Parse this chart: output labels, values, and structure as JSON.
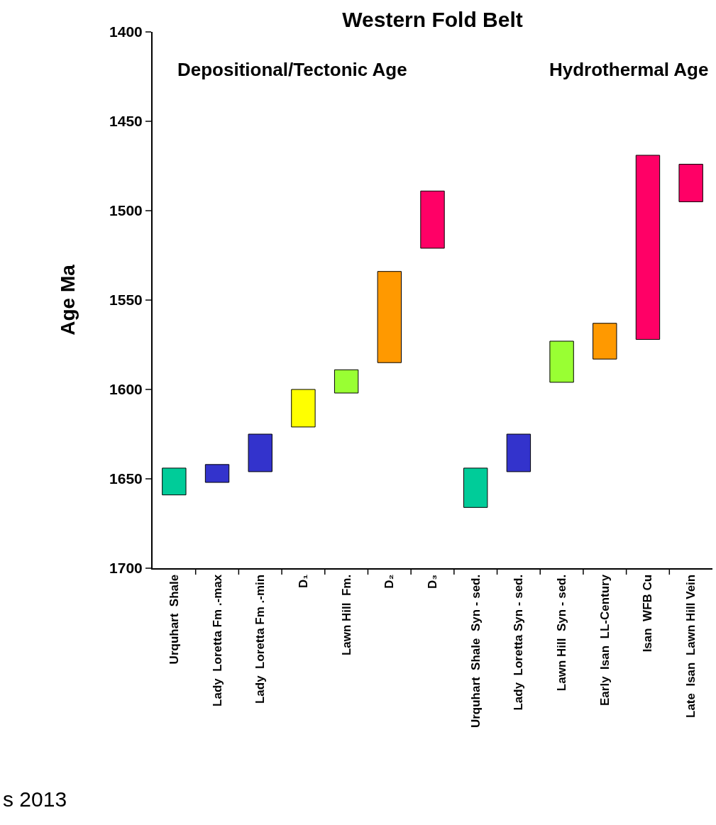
{
  "chart_data": {
    "type": "bar",
    "title": "Western Fold Belt",
    "ylabel": "Age Ma",
    "categories": [
      "Urquhart  Shale",
      "Lady  Loretta Fm .-max",
      "Lady  Loretta Fm .-min",
      "D₁",
      "Lawn Hill  Fm.",
      "D₂",
      "D₃",
      "Urquhart  Shale  Syn - sed.",
      "Lady  Loretta Syn - sed.",
      "Lawn Hill  Syn - sed.",
      "Early  Isan  LL-Century",
      "Isan  WFB Cu",
      "Late  Isan  Lawn Hill Vein"
    ],
    "base": [
      1644,
      1642,
      1625,
      1600,
      1589,
      1534,
      1489,
      1644,
      1625,
      1573,
      1563,
      1469,
      1474
    ],
    "values": [
      15,
      10,
      21,
      21,
      13,
      51,
      32,
      22,
      21,
      23,
      20,
      103,
      21
    ],
    "colors": [
      "#00cc99",
      "#3333cc",
      "#3333cc",
      "#ffff00",
      "#99ff33",
      "#ff9900",
      "#ff0066",
      "#00cc99",
      "#3333cc",
      "#99ff33",
      "#ff9900",
      "#ff0066",
      "#ff0066"
    ],
    "ylim": [
      1700,
      1400
    ],
    "yticks": [
      1400,
      1450,
      1500,
      1550,
      1600,
      1650,
      1700
    ],
    "grid": false,
    "annotations": [
      "Depositional/Tectonic Age",
      "Hydrothermal Age",
      "s 2013"
    ]
  }
}
